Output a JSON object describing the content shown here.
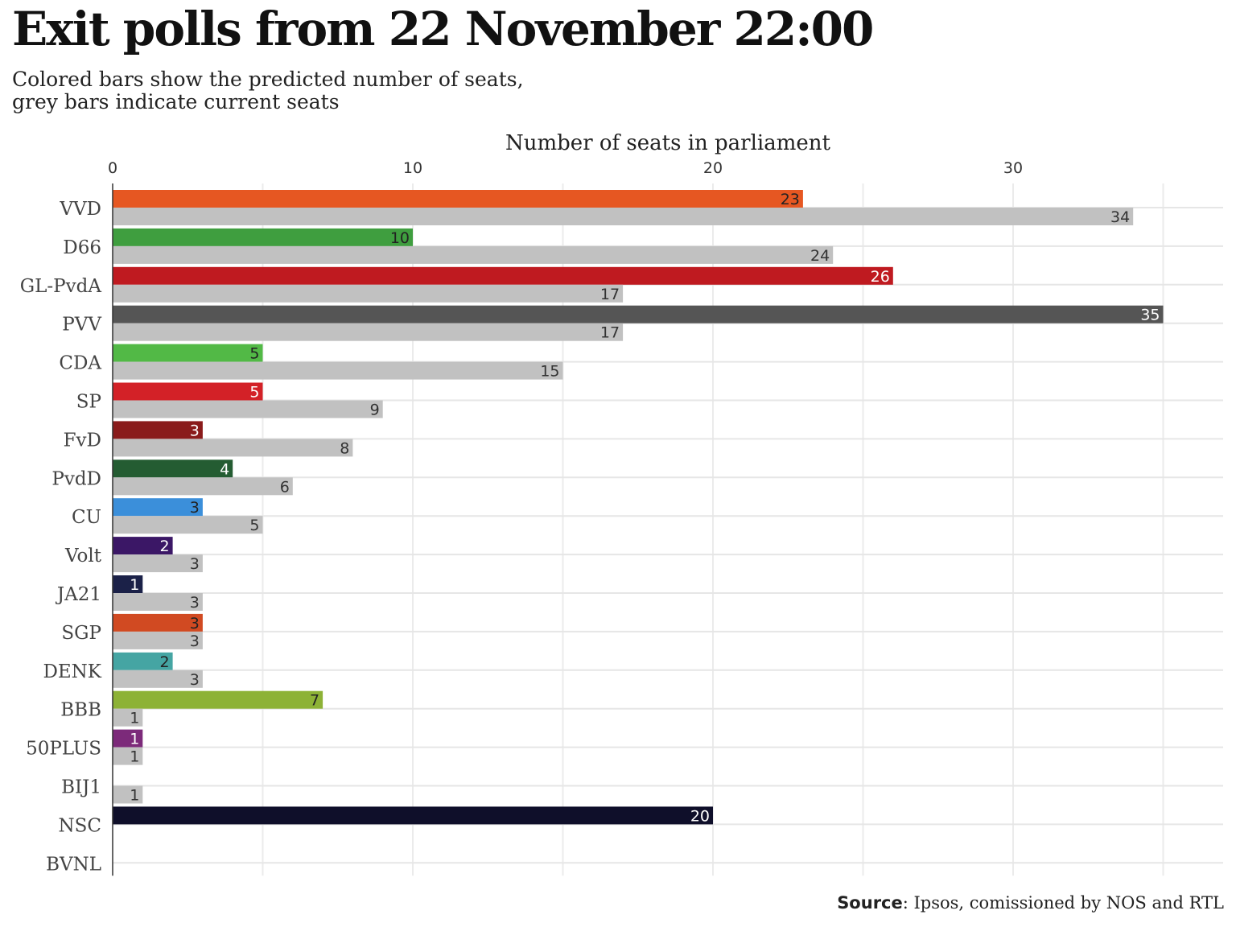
{
  "title": "Exit polls from 22 November 22:00",
  "subtitle_lines": [
    "Colored bars show the predicted number of seats,",
    "grey bars indicate current seats"
  ],
  "source_label": "Source",
  "source_text": ": Ipsos, comissioned by NOS and RTL",
  "chart_data": {
    "type": "bar",
    "orientation": "horizontal",
    "xlabel": "Number of seats in parliament",
    "xlim": [
      0,
      37
    ],
    "xticks": [
      0,
      10,
      20,
      30
    ],
    "grid": true,
    "categories": [
      "VVD",
      "D66",
      "GL-PvdA",
      "PVV",
      "CDA",
      "SP",
      "FvD",
      "PvdD",
      "CU",
      "Volt",
      "JA21",
      "SGP",
      "DENK",
      "BBB",
      "50PLUS",
      "BIJ1",
      "NSC",
      "BVNL"
    ],
    "series": [
      {
        "name": "Predicted seats",
        "values": [
          23,
          10,
          26,
          35,
          5,
          5,
          3,
          4,
          3,
          2,
          1,
          3,
          2,
          7,
          1,
          0,
          20,
          0
        ],
        "colors": [
          "#e65722",
          "#3f9e3f",
          "#bf1a20",
          "#555555",
          "#52b946",
          "#d32127",
          "#8a1b1b",
          "#245c32",
          "#3b8fda",
          "#3b1766",
          "#1b2148",
          "#d14a22",
          "#45a5a3",
          "#8db236",
          "#7c2a7a",
          "#000000",
          "#0f0f2a",
          "#000000"
        ],
        "label_colors": [
          "#222",
          "#222",
          "#fff",
          "#fff",
          "#222",
          "#fff",
          "#fff",
          "#fff",
          "#222",
          "#fff",
          "#fff",
          "#222",
          "#222",
          "#222",
          "#fff",
          "#fff",
          "#fff",
          "#fff"
        ]
      },
      {
        "name": "Current seats",
        "values": [
          34,
          24,
          17,
          17,
          15,
          9,
          8,
          6,
          5,
          3,
          3,
          3,
          3,
          1,
          1,
          1,
          0,
          0
        ],
        "color": "#c1c1c1"
      }
    ]
  }
}
